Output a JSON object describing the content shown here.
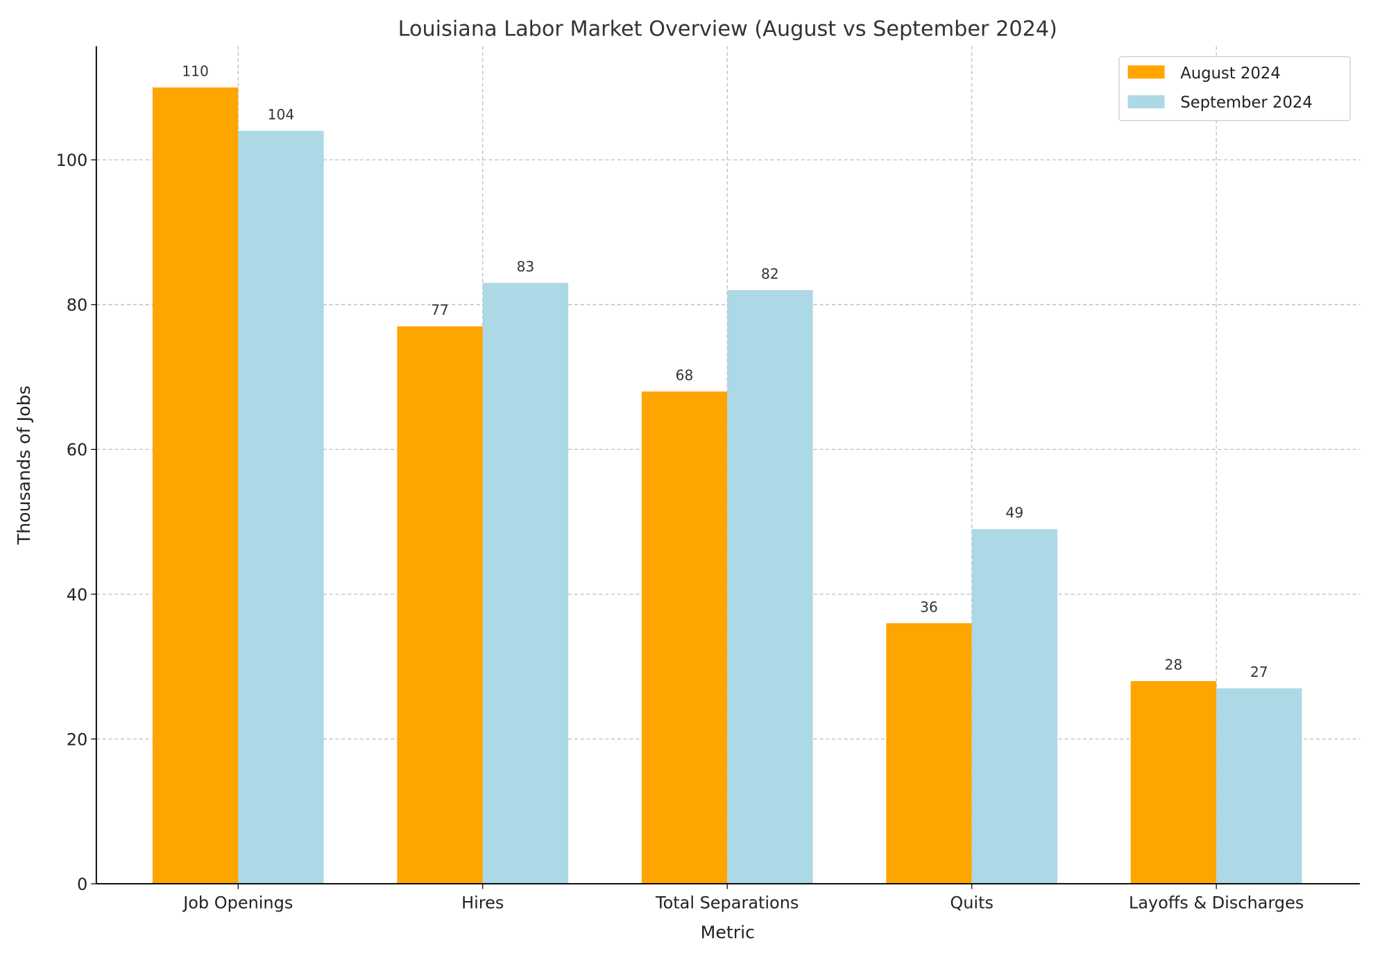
{
  "chart_data": {
    "type": "bar",
    "title": "Louisiana Labor Market Overview (August vs September 2024)",
    "xlabel": "Metric",
    "ylabel": "Thousands of Jobs",
    "categories": [
      "Job Openings",
      "Hires",
      "Total Separations",
      "Quits",
      "Layoffs & Discharges"
    ],
    "series": [
      {
        "name": "August 2024",
        "color": "#FFA500",
        "values": [
          110,
          77,
          68,
          36,
          28
        ]
      },
      {
        "name": "September 2024",
        "color": "#ADD8E6",
        "values": [
          104,
          83,
          82,
          49,
          27
        ]
      }
    ],
    "ylim": [
      0,
      115.7
    ],
    "yticks": [
      0,
      20,
      40,
      60,
      80,
      100
    ],
    "grid": true,
    "legend": "top-right",
    "data_labels": true
  }
}
